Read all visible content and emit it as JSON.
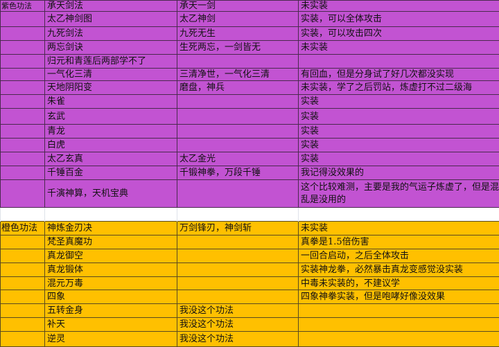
{
  "colors": {
    "purple": "#c253d2",
    "orange": "#ffc000"
  },
  "purple_section": {
    "category": "紫色功法",
    "rows": [
      [
        "承天剑法",
        "承天一剑",
        "未实装"
      ],
      [
        "太乙神剑图",
        "太乙神剑",
        "实装，可以全体攻击"
      ],
      [
        "九死剑法",
        "九死无生",
        "实装，可以攻击四次"
      ],
      [
        "两忘剑诀",
        "生死两忘，一剑皆无",
        "未实装"
      ],
      [
        "归元和青莲后两部学不了",
        "",
        ""
      ],
      [
        "一气化三清",
        "三清净世，一气化三清",
        "有回血，但是分身试了好几次都没实现"
      ],
      [
        "天地阴阳变",
        "磨盘，神兵",
        "未实装，学了之后罚站，炼虚打不过二级海"
      ],
      [
        "朱雀",
        "",
        "实装"
      ],
      [
        "玄武",
        "",
        "实装"
      ],
      [
        "青龙",
        "",
        "实装"
      ],
      [
        "白虎",
        "",
        "实装"
      ],
      [
        "太乙玄真",
        "太乙金光",
        "实装"
      ],
      [
        "千锤百金",
        "千锻神拳，万段千锤",
        "我记得没效果的"
      ],
      [
        "千演神算，天机宝典",
        "",
        "这个比较难测，主要是我的气运子炼虚了，但是混乱是没用的"
      ]
    ]
  },
  "orange_section": {
    "category": "橙色功法",
    "rows": [
      [
        "神炼金刃决",
        "万剑锋刃，神剑斩",
        "未实装"
      ],
      [
        "梵圣真魔功",
        "",
        "真拳是1.5倍伤害"
      ],
      [
        "真龙御空",
        "",
        "一回合启动，之后全体攻击"
      ],
      [
        "真龙锻体",
        "",
        "实装神龙拳，必然暴击真龙变感觉没实装"
      ],
      [
        "混元万毒",
        "",
        "中毒未实装的，不建议学"
      ],
      [
        "四象",
        "",
        "四象神拳实装，但是咆哮好像没效果"
      ],
      [
        "五转金身",
        "我没这个功法",
        ""
      ],
      [
        "补天",
        "我没这个功法",
        ""
      ],
      [
        "逆灵",
        "我没这个功法",
        ""
      ]
    ]
  }
}
